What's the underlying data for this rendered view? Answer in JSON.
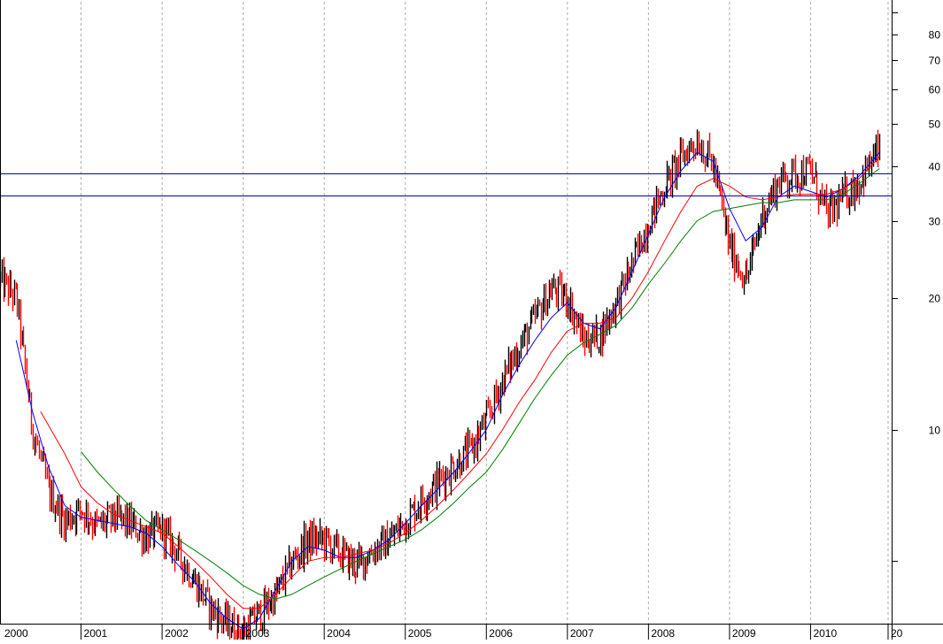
{
  "chart_data": {
    "type": "candlestick",
    "title": "",
    "xlabel": "",
    "ylabel": "",
    "y_scale": "log",
    "ylim": [
      3.6,
      95
    ],
    "x_range": [
      "2000-01-01",
      "2010-12-31"
    ],
    "grid": "vertical dashed at year starts",
    "x_tick_labels": [
      "2000",
      "2001",
      "2002",
      "2003",
      "2004",
      "2005",
      "2006",
      "2007",
      "2008",
      "2009",
      "2010",
      "20"
    ],
    "y_tick_labels": [
      "10",
      "20",
      "30",
      "40",
      "50",
      "60",
      "70",
      "80"
    ],
    "y_tick_values": [
      10,
      20,
      30,
      40,
      50,
      60,
      70,
      80
    ],
    "y_minor_ticks": [
      5,
      90
    ],
    "horizontal_lines": [
      {
        "value": 38.5,
        "color": "#0000cc"
      },
      {
        "value": 34.2,
        "color": "#0000cc"
      }
    ],
    "series_close": {
      "x": [
        2000.0,
        2000.2,
        2000.4,
        2000.6,
        2000.8,
        2001.0,
        2001.2,
        2001.4,
        2001.6,
        2001.8,
        2002.0,
        2002.2,
        2002.4,
        2002.6,
        2002.8,
        2003.0,
        2003.2,
        2003.4,
        2003.6,
        2003.8,
        2004.0,
        2004.2,
        2004.4,
        2004.6,
        2004.8,
        2005.0,
        2005.2,
        2005.4,
        2005.6,
        2005.8,
        2006.0,
        2006.2,
        2006.4,
        2006.6,
        2006.8,
        2007.0,
        2007.2,
        2007.4,
        2007.6,
        2007.8,
        2008.0,
        2008.2,
        2008.4,
        2008.6,
        2008.8,
        2009.0,
        2009.2,
        2009.4,
        2009.6,
        2009.8,
        2010.0,
        2010.2,
        2010.4,
        2010.6,
        2010.85
      ],
      "values": [
        22,
        20,
        10,
        7.2,
        6.2,
        6.6,
        6.0,
        6.3,
        6.1,
        5.7,
        5.9,
        5.2,
        4.5,
        3.9,
        3.6,
        3.45,
        3.8,
        4.2,
        5.0,
        5.6,
        5.6,
        5.2,
        4.9,
        5.3,
        5.6,
        6.2,
        6.9,
        7.6,
        8.3,
        9.0,
        10.5,
        13.0,
        15.5,
        18.0,
        21.0,
        20.0,
        16.0,
        16.5,
        19.5,
        24.0,
        30.0,
        36.0,
        42.0,
        46.0,
        40.0,
        26.0,
        22.0,
        31.0,
        37.0,
        38.5,
        39.0,
        31.0,
        34.0,
        37.0,
        44.0
      ]
    },
    "moving_averages": [
      {
        "color": "#0000ff",
        "x": [
          2000.2,
          2000.4,
          2000.6,
          2000.8,
          2001.0,
          2001.2,
          2001.4,
          2001.6,
          2001.8,
          2002.0,
          2002.2,
          2002.4,
          2002.6,
          2002.8,
          2003.0,
          2003.2,
          2003.4,
          2003.6,
          2003.8,
          2004.0,
          2004.2,
          2004.4,
          2004.6,
          2004.8,
          2005.0,
          2005.2,
          2005.4,
          2005.6,
          2005.8,
          2006.0,
          2006.2,
          2006.4,
          2006.6,
          2006.8,
          2007.0,
          2007.2,
          2007.4,
          2007.6,
          2007.8,
          2008.0,
          2008.2,
          2008.4,
          2008.6,
          2008.8,
          2009.0,
          2009.2,
          2009.4,
          2009.6,
          2009.8,
          2010.0,
          2010.2,
          2010.4,
          2010.6,
          2010.85
        ],
        "values": [
          16,
          11,
          8.2,
          6.7,
          6.3,
          6.2,
          6.1,
          6.0,
          5.8,
          5.4,
          4.9,
          4.5,
          4.0,
          3.7,
          3.5,
          3.7,
          4.3,
          5.0,
          5.4,
          5.3,
          5.1,
          5.1,
          5.3,
          5.6,
          6.1,
          6.7,
          7.3,
          8.0,
          8.9,
          10.0,
          12.0,
          14.0,
          16.0,
          18.0,
          19.5,
          17.5,
          17.0,
          19.0,
          23.0,
          28.0,
          34.0,
          39.0,
          43.0,
          41.0,
          32.0,
          27.0,
          29.0,
          34.0,
          36.0,
          35.0,
          34.0,
          35.5,
          38.0,
          43.0
        ]
      },
      {
        "color": "#ff0000",
        "x": [
          2000.5,
          2000.8,
          2001.0,
          2001.2,
          2001.4,
          2001.6,
          2001.8,
          2002.0,
          2002.2,
          2002.4,
          2002.6,
          2002.8,
          2003.0,
          2003.2,
          2003.4,
          2003.6,
          2003.8,
          2004.0,
          2004.2,
          2004.4,
          2004.6,
          2004.8,
          2005.0,
          2005.2,
          2005.4,
          2005.6,
          2005.8,
          2006.0,
          2006.2,
          2006.4,
          2006.6,
          2006.8,
          2007.0,
          2007.2,
          2007.4,
          2007.6,
          2007.8,
          2008.0,
          2008.2,
          2008.4,
          2008.6,
          2008.8,
          2009.0,
          2009.2,
          2009.4,
          2009.6,
          2009.8,
          2010.0,
          2010.2,
          2010.4,
          2010.6,
          2010.85
        ],
        "values": [
          11,
          8.8,
          7.4,
          6.8,
          6.4,
          6.2,
          6.0,
          5.8,
          5.4,
          5.0,
          4.6,
          4.2,
          3.9,
          3.9,
          4.2,
          4.6,
          5.0,
          5.1,
          5.1,
          5.2,
          5.3,
          5.5,
          5.8,
          6.2,
          6.7,
          7.3,
          8.0,
          8.8,
          10.0,
          11.5,
          13.0,
          15.0,
          16.8,
          17.5,
          17.5,
          18.0,
          20.0,
          23.0,
          27.0,
          31.5,
          36.0,
          37.5,
          36.0,
          34.0,
          33.5,
          34.0,
          34.5,
          34.5,
          34.5,
          35.5,
          37.5,
          42.0
        ]
      },
      {
        "color": "#008000",
        "x": [
          2001.0,
          2001.2,
          2001.4,
          2001.6,
          2001.8,
          2002.0,
          2002.2,
          2002.4,
          2002.6,
          2002.8,
          2003.0,
          2003.2,
          2003.4,
          2003.6,
          2003.8,
          2004.0,
          2004.2,
          2004.4,
          2004.6,
          2004.8,
          2005.0,
          2005.2,
          2005.4,
          2005.6,
          2005.8,
          2006.0,
          2006.2,
          2006.4,
          2006.6,
          2006.8,
          2007.0,
          2007.2,
          2007.4,
          2007.6,
          2007.8,
          2008.0,
          2008.2,
          2008.4,
          2008.6,
          2008.8,
          2009.0,
          2009.2,
          2009.4,
          2009.6,
          2009.8,
          2010.0,
          2010.2,
          2010.4,
          2010.6,
          2010.85
        ],
        "values": [
          8.9,
          8.0,
          7.3,
          6.7,
          6.2,
          5.9,
          5.6,
          5.3,
          5.0,
          4.7,
          4.4,
          4.2,
          4.1,
          4.2,
          4.4,
          4.6,
          4.8,
          5.0,
          5.2,
          5.4,
          5.6,
          5.9,
          6.3,
          6.8,
          7.4,
          8.0,
          9.0,
          10.3,
          11.8,
          13.3,
          14.8,
          15.8,
          16.5,
          17.3,
          19.0,
          21.5,
          24.0,
          27.0,
          30.0,
          31.5,
          32.0,
          32.5,
          33.0,
          33.0,
          33.5,
          33.5,
          33.5,
          34.5,
          36.5,
          39.5
        ]
      }
    ]
  }
}
